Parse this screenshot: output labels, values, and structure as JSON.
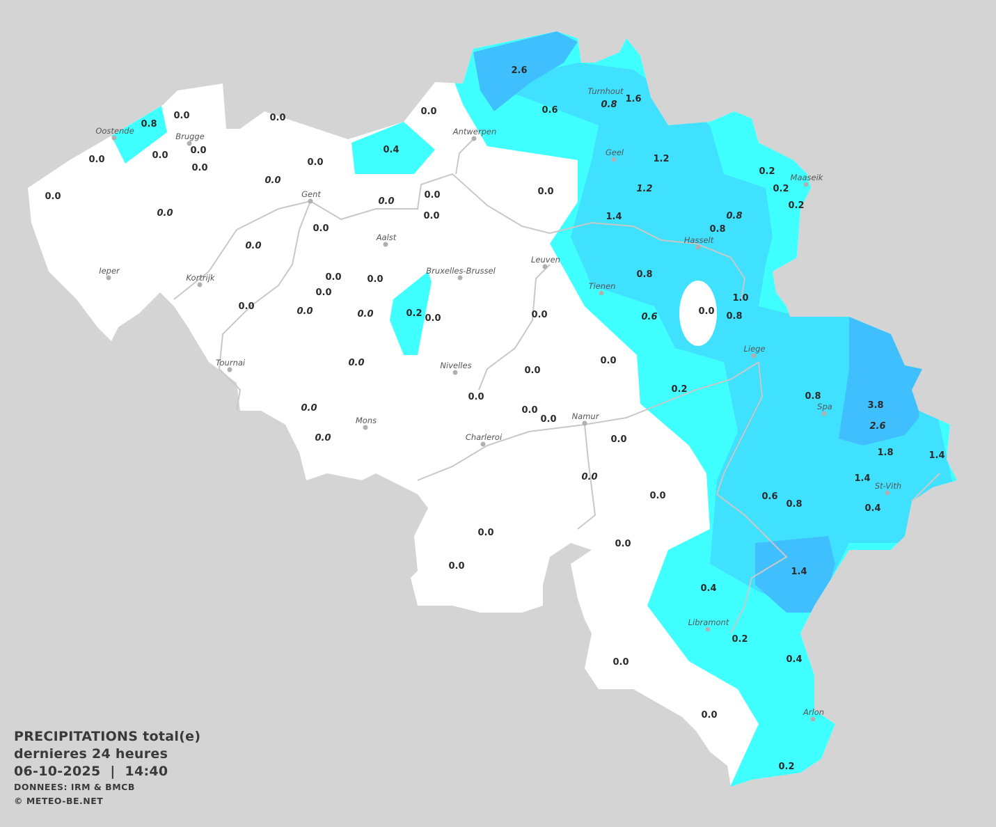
{
  "title": {
    "line1": "PRECIPITATIONS total(e)",
    "line2": "dernieres 24 heures",
    "line3": "06-10-2025  |  14:40",
    "source": "DONNEES: IRM & BMCB",
    "copyright": "© METEO-BE.NET"
  },
  "colors": {
    "background": "#d4d4d4",
    "land": "#ffffff",
    "rain_light": "#40ffff",
    "rain_medium": "#40e0ff",
    "rain_heavy": "#40bfff",
    "rivers": "#c8c8c8"
  },
  "unit_hint": "mm",
  "cities": [
    "Oostende",
    "Brugge",
    "Antwerpen",
    "Turnhout",
    "Geel",
    "Maaseik",
    "Gent",
    "Aalst",
    "Hasselt",
    "Leuven",
    "Ieper",
    "Kortrijk",
    "Bruxelles-Brussel",
    "Tienen",
    "Liege",
    "Tournai",
    "Nivelles",
    "Spa",
    "Mons",
    "Namur",
    "Charleroi",
    "St-Vith",
    "Libramont",
    "Arlon"
  ],
  "stations": [
    {
      "v": "2.6"
    },
    {
      "v": "0.6"
    },
    {
      "v": "0.8",
      "italic": true
    },
    {
      "v": "1.6"
    },
    {
      "v": "0.0"
    },
    {
      "v": "0.4"
    },
    {
      "v": "0.0"
    },
    {
      "v": "0.8"
    },
    {
      "v": "0.0"
    },
    {
      "v": "0.0"
    },
    {
      "v": "0.0"
    },
    {
      "v": "0.0"
    },
    {
      "v": "0.0"
    },
    {
      "v": "0.0"
    },
    {
      "v": "0.0",
      "italic": true
    },
    {
      "v": "0.0"
    },
    {
      "v": "0.0",
      "italic": true
    },
    {
      "v": "0.0",
      "italic": true
    },
    {
      "v": "0.0"
    },
    {
      "v": "0.0"
    },
    {
      "v": "0.0"
    },
    {
      "v": "0.0",
      "italic": true
    },
    {
      "v": "0.0"
    },
    {
      "v": "1.2"
    },
    {
      "v": "1.2",
      "italic": true
    },
    {
      "v": "1.4"
    },
    {
      "v": "0.8",
      "italic": true
    },
    {
      "v": "0.8"
    },
    {
      "v": "0.2"
    },
    {
      "v": "0.2"
    },
    {
      "v": "0.2"
    },
    {
      "v": "0.0"
    },
    {
      "v": "0.0"
    },
    {
      "v": "0.0"
    },
    {
      "v": "0.0"
    },
    {
      "v": "0.0",
      "italic": true
    },
    {
      "v": "0.0",
      "italic": true
    },
    {
      "v": "0.2"
    },
    {
      "v": "0.0"
    },
    {
      "v": "0.0"
    },
    {
      "v": "0.8"
    },
    {
      "v": "0.6",
      "italic": true
    },
    {
      "v": "0.0"
    },
    {
      "v": "1.0"
    },
    {
      "v": "0.8"
    },
    {
      "v": "0.0",
      "italic": true
    },
    {
      "v": "0.0"
    },
    {
      "v": "0.0"
    },
    {
      "v": "0.0"
    },
    {
      "v": "0.2"
    },
    {
      "v": "0.0",
      "italic": true
    },
    {
      "v": "0.0"
    },
    {
      "v": "0.0"
    },
    {
      "v": "0.0",
      "italic": true
    },
    {
      "v": "0.0"
    },
    {
      "v": "0.0",
      "italic": true
    },
    {
      "v": "0.0"
    },
    {
      "v": "0.8"
    },
    {
      "v": "3.8"
    },
    {
      "v": "2.6",
      "italic": true
    },
    {
      "v": "1.8"
    },
    {
      "v": "1.4"
    },
    {
      "v": "1.4"
    },
    {
      "v": "0.4"
    },
    {
      "v": "0.6"
    },
    {
      "v": "0.8"
    },
    {
      "v": "0.0"
    },
    {
      "v": "0.0"
    },
    {
      "v": "0.0"
    },
    {
      "v": "1.4"
    },
    {
      "v": "0.4"
    },
    {
      "v": "0.2"
    },
    {
      "v": "0.4"
    },
    {
      "v": "0.0"
    },
    {
      "v": "0.0"
    },
    {
      "v": "0.2"
    }
  ]
}
